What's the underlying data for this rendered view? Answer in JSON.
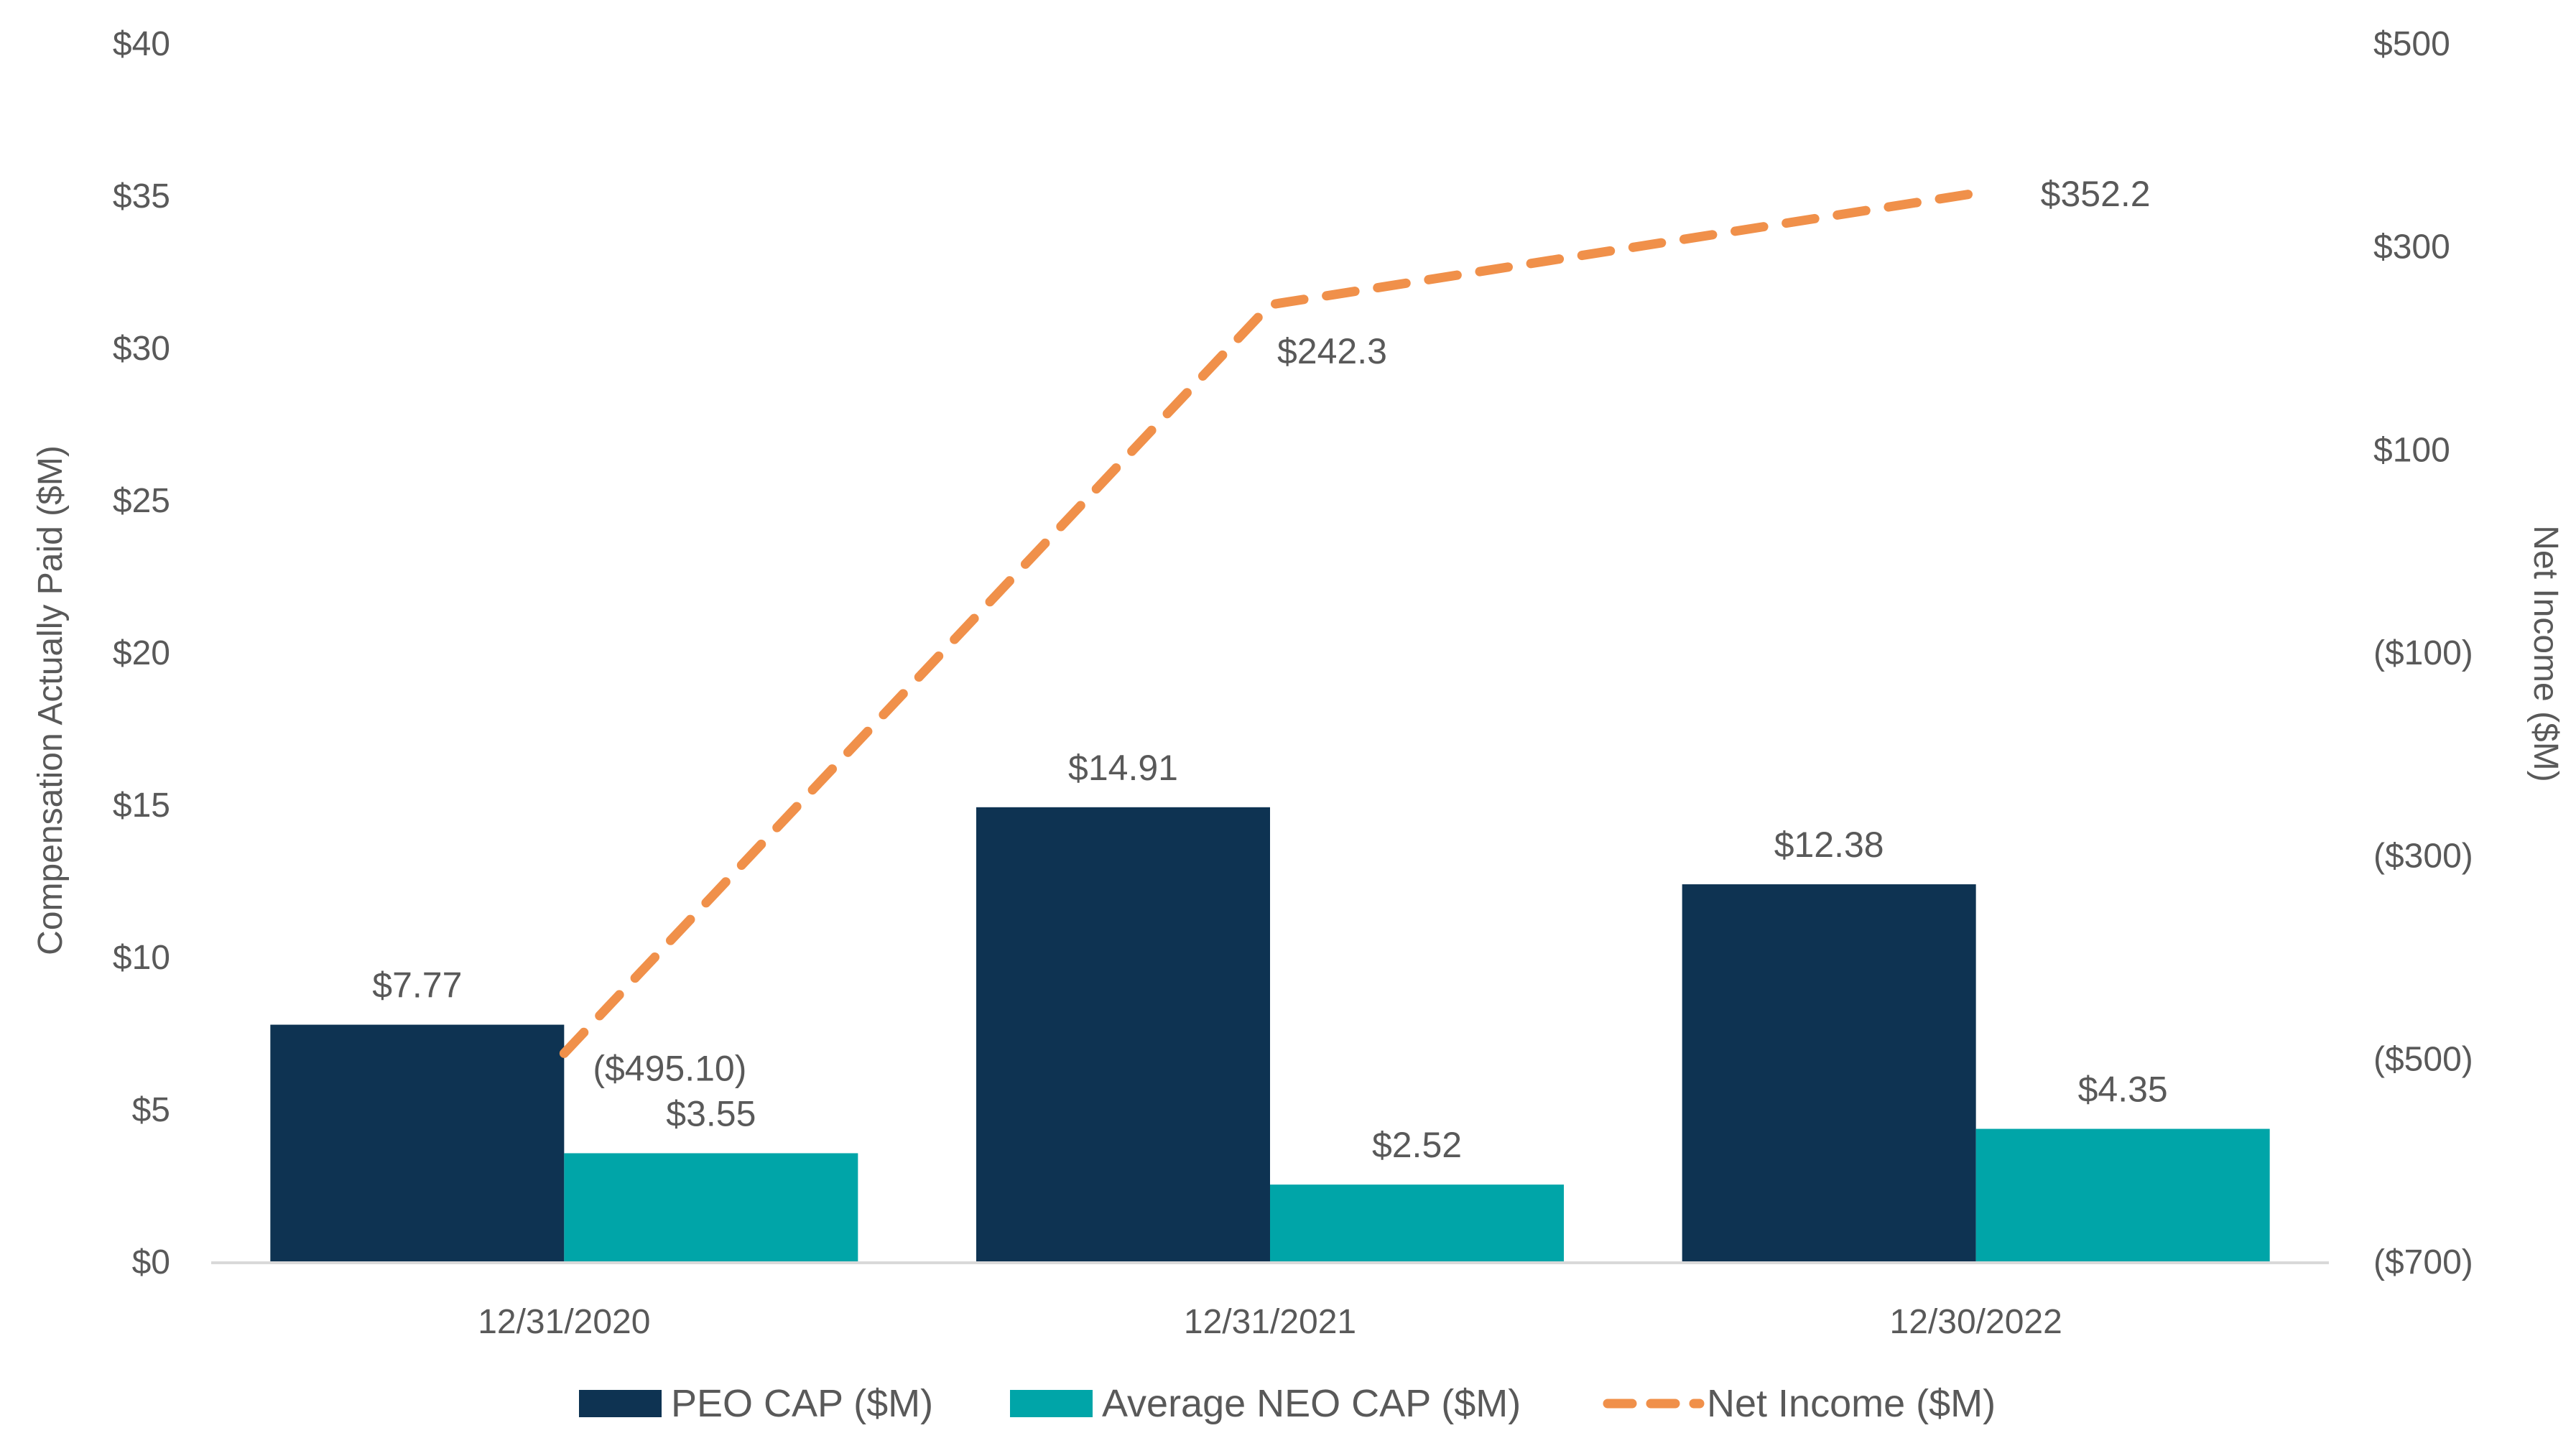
{
  "chart_data": {
    "type": "bar",
    "categories": [
      "12/31/2020",
      "12/31/2021",
      "12/30/2022"
    ],
    "series": [
      {
        "name": "PEO CAP ($M)",
        "type": "bar",
        "axis": "left",
        "color": "#0e3352",
        "values": [
          7.77,
          14.91,
          12.38
        ],
        "labels": [
          "$7.77",
          "$14.91",
          "$12.38"
        ]
      },
      {
        "name": "Average NEO CAP ($M)",
        "type": "bar",
        "axis": "left",
        "color": "#00a5a8",
        "values": [
          3.55,
          2.52,
          4.35
        ],
        "labels": [
          "$3.55",
          "$2.52",
          "$4.35"
        ]
      },
      {
        "name": "Net Income ($M)",
        "type": "line",
        "style": "dashed",
        "axis": "right",
        "color": "#f0904a",
        "values": [
          -495.1,
          242.3,
          352.2
        ],
        "labels": [
          "($495.10)",
          "$242.3",
          "$352.2"
        ]
      }
    ],
    "ylabel": "Compensation Actually Paid ($M)",
    "y2label": "Net Income ($M)",
    "ylim": [
      0,
      40
    ],
    "y2lim": [
      -700,
      500
    ],
    "yticks": [
      "$0",
      "$5",
      "$10",
      "$15",
      "$20",
      "$25",
      "$30",
      "$35",
      "$40"
    ],
    "y2ticks": [
      "($700)",
      "($500)",
      "($300)",
      "($100)",
      "$100",
      "$300",
      "$500"
    ],
    "grid": false,
    "legend": "bottom"
  }
}
